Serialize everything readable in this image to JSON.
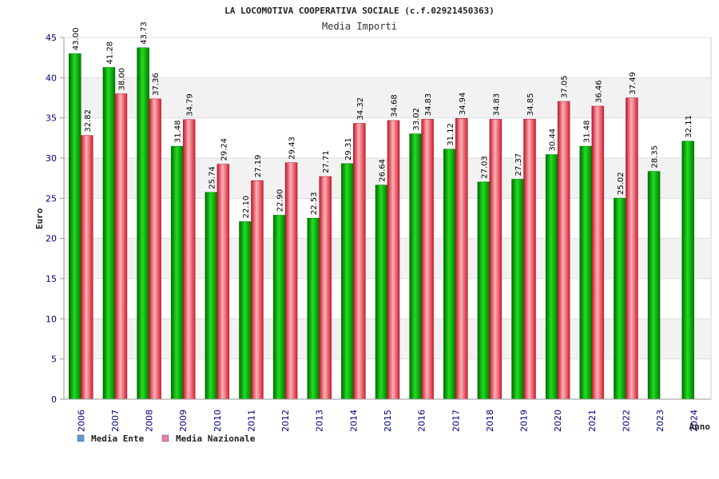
{
  "chart_data": {
    "type": "bar",
    "title": "LA LOCOMOTIVA COOPERATIVA SOCIALE (c.f.02921450363)",
    "subtitle": "Media Importi",
    "xlabel": "Anno",
    "ylabel": "Euro",
    "ylim": [
      0,
      45
    ],
    "yticks": [
      "0",
      "5",
      "10",
      "15",
      "20",
      "25",
      "30",
      "35",
      "40",
      "45"
    ],
    "categories": [
      "2006",
      "2007",
      "2008",
      "2009",
      "2010",
      "2011",
      "2012",
      "2013",
      "2014",
      "2015",
      "2016",
      "2017",
      "2018",
      "2019",
      "2020",
      "2021",
      "2022",
      "2023",
      "2024"
    ],
    "series": [
      {
        "name": "Media Ente",
        "color": "#00b000",
        "values": [
          43.0,
          41.28,
          43.73,
          31.48,
          25.74,
          22.1,
          22.9,
          22.53,
          29.31,
          26.64,
          33.02,
          31.12,
          27.03,
          27.37,
          30.44,
          31.48,
          25.02,
          28.35,
          32.11
        ],
        "labels": [
          "43.00",
          "41.28",
          "43.73",
          "31.48",
          "25.74",
          "22.10",
          "22.90",
          "22.53",
          "29.31",
          "26.64",
          "33.02",
          "31.12",
          "27.03",
          "27.37",
          "30.44",
          "31.48",
          "25.02",
          "28.35",
          "32.11"
        ]
      },
      {
        "name": "Media Nazionale",
        "color": "#e8303c",
        "values": [
          32.82,
          38.0,
          37.36,
          34.79,
          29.24,
          27.19,
          29.43,
          27.71,
          34.32,
          34.68,
          34.83,
          34.94,
          34.83,
          34.85,
          37.05,
          36.46,
          37.49,
          null,
          null
        ],
        "labels": [
          "32.82",
          "38.00",
          "37.36",
          "34.79",
          "29.24",
          "27.19",
          "29.43",
          "27.71",
          "34.32",
          "34.68",
          "34.83",
          "34.94",
          "34.83",
          "34.85",
          "37.05",
          "36.46",
          "37.49",
          null,
          null
        ]
      }
    ],
    "legend": [
      {
        "name": "Media Ente",
        "color": "#5b9bd5"
      },
      {
        "name": "Media Nazionale",
        "color": "#e880b0"
      }
    ],
    "grid": true,
    "legend_position": "bottom-left"
  }
}
